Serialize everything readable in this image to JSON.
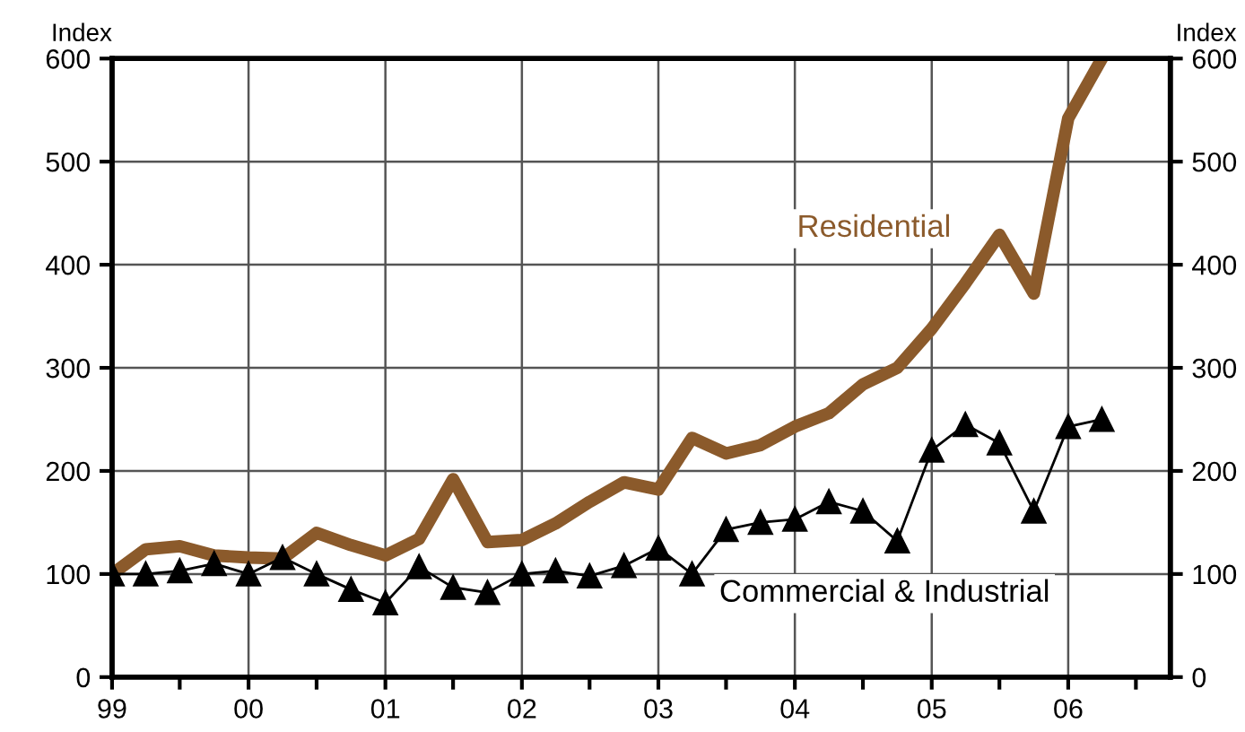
{
  "chart_data": {
    "type": "line",
    "x": [
      "1999-01",
      "1999-04",
      "1999-07",
      "1999-10",
      "2000-01",
      "2000-04",
      "2000-07",
      "2000-10",
      "2001-01",
      "2001-04",
      "2001-07",
      "2001-10",
      "2002-01",
      "2002-04",
      "2002-07",
      "2002-10",
      "2003-01",
      "2003-04",
      "2003-07",
      "2003-10",
      "2004-01",
      "2004-04",
      "2004-07",
      "2004-10",
      "2005-01",
      "2005-04",
      "2005-07",
      "2005-10",
      "2006-01",
      "2006-04"
    ],
    "series": [
      {
        "name": "Residential",
        "color": "#8b5a2b",
        "marker": "none",
        "values": [
          100,
          124,
          127,
          118,
          116,
          115,
          140,
          128,
          118,
          134,
          192,
          131,
          133,
          149,
          170,
          189,
          182,
          232,
          217,
          225,
          243,
          256,
          284,
          300,
          338,
          382,
          429,
          372,
          542,
          600
        ]
      },
      {
        "name": "Commercial & Industrial",
        "color": "#000000",
        "marker": "triangle",
        "values": [
          100,
          100,
          103,
          110,
          100,
          116,
          100,
          85,
          72,
          107,
          87,
          82,
          100,
          103,
          98,
          108,
          125,
          100,
          143,
          150,
          153,
          170,
          161,
          132,
          220,
          245,
          227,
          161,
          243,
          250
        ]
      }
    ],
    "ylabel": "Index",
    "y2label": "Index",
    "xlim": [
      "1999-01",
      "2006-10"
    ],
    "xticks": [
      {
        "value": "1999",
        "label": "99"
      },
      {
        "value": "1999-07",
        "label": null
      },
      {
        "value": "2000",
        "label": "00"
      },
      {
        "value": "2000-07",
        "label": null
      },
      {
        "value": "2001",
        "label": "01"
      },
      {
        "value": "2001-07",
        "label": null
      },
      {
        "value": "2002",
        "label": "02"
      },
      {
        "value": "2002-07",
        "label": null
      },
      {
        "value": "2003",
        "label": "03"
      },
      {
        "value": "2003-07",
        "label": null
      },
      {
        "value": "2004",
        "label": "04"
      },
      {
        "value": "2004-07",
        "label": null
      },
      {
        "value": "2005",
        "label": "05"
      },
      {
        "value": "2005-07",
        "label": null
      },
      {
        "value": "2006",
        "label": "06"
      },
      {
        "value": "2006-07",
        "label": null
      }
    ],
    "ylim": [
      0,
      600
    ],
    "yticks": [
      0,
      100,
      200,
      300,
      400,
      500,
      600
    ],
    "y2lim": [
      0,
      600
    ],
    "y2ticks": [
      0,
      100,
      200,
      300,
      400,
      500,
      600
    ],
    "grid": true,
    "legend": false
  }
}
